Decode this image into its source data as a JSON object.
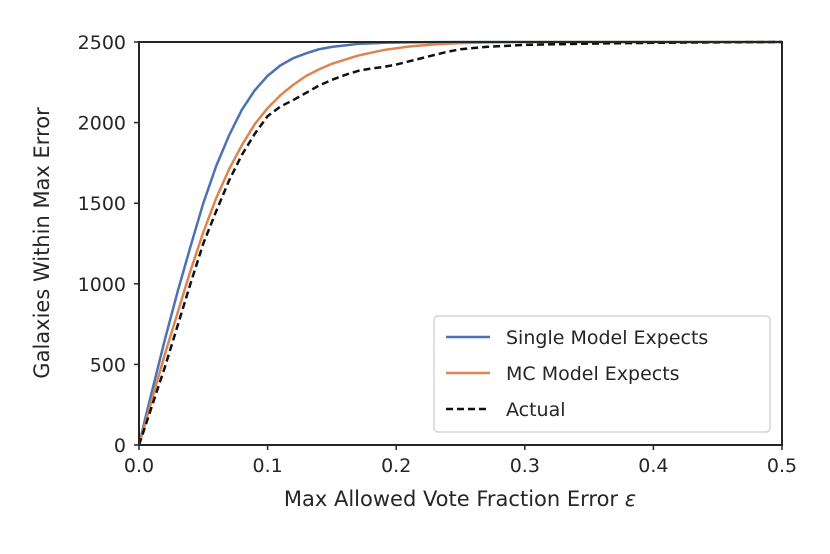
{
  "chart_data": {
    "type": "line",
    "title": "",
    "xlabel": "Max Allowed Vote Fraction Error",
    "xlabel_symbol": "ε",
    "ylabel": "Galaxies Within Max Error",
    "xlim": [
      0.0,
      0.5
    ],
    "ylim": [
      0,
      2500
    ],
    "xticks": [
      0.0,
      0.1,
      0.2,
      0.3,
      0.4,
      0.5
    ],
    "xtick_labels": [
      "0.0",
      "0.1",
      "0.2",
      "0.3",
      "0.4",
      "0.5"
    ],
    "yticks": [
      0,
      500,
      1000,
      1500,
      2000,
      2500
    ],
    "ytick_labels": [
      "0",
      "500",
      "1000",
      "1500",
      "2000",
      "2500"
    ],
    "grid": false,
    "legend_position": "bottom-right",
    "series": [
      {
        "name": "Single Model Expects",
        "color": "#4c72b0",
        "style": "solid",
        "x": [
          0.0,
          0.005,
          0.01,
          0.02,
          0.03,
          0.04,
          0.05,
          0.06,
          0.07,
          0.08,
          0.09,
          0.1,
          0.11,
          0.12,
          0.13,
          0.14,
          0.15,
          0.17,
          0.19,
          0.21,
          0.23,
          0.25,
          0.3,
          0.4,
          0.5
        ],
        "y": [
          0,
          170,
          330,
          650,
          950,
          1230,
          1500,
          1730,
          1920,
          2080,
          2200,
          2290,
          2355,
          2400,
          2430,
          2455,
          2470,
          2488,
          2495,
          2498,
          2499,
          2500,
          2500,
          2500,
          2500
        ]
      },
      {
        "name": "MC Model Expects",
        "color": "#dd8452",
        "style": "solid",
        "x": [
          0.0,
          0.005,
          0.01,
          0.02,
          0.03,
          0.04,
          0.05,
          0.06,
          0.07,
          0.08,
          0.09,
          0.1,
          0.11,
          0.12,
          0.13,
          0.14,
          0.15,
          0.17,
          0.19,
          0.21,
          0.23,
          0.25,
          0.27,
          0.3,
          0.4,
          0.5
        ],
        "y": [
          0,
          140,
          280,
          560,
          820,
          1080,
          1320,
          1530,
          1710,
          1860,
          1990,
          2090,
          2170,
          2235,
          2290,
          2330,
          2365,
          2415,
          2450,
          2472,
          2485,
          2493,
          2497,
          2500,
          2500,
          2500
        ]
      },
      {
        "name": "Actual",
        "color": "#111111",
        "style": "dashed",
        "x": [
          0.0,
          0.005,
          0.01,
          0.02,
          0.03,
          0.04,
          0.05,
          0.06,
          0.07,
          0.08,
          0.09,
          0.1,
          0.11,
          0.12,
          0.13,
          0.14,
          0.15,
          0.16,
          0.17,
          0.18,
          0.19,
          0.2,
          0.21,
          0.22,
          0.23,
          0.24,
          0.25,
          0.27,
          0.3,
          0.35,
          0.4,
          0.45,
          0.5
        ],
        "y": [
          0,
          120,
          240,
          480,
          740,
          1000,
          1250,
          1450,
          1640,
          1800,
          1930,
          2040,
          2100,
          2140,
          2185,
          2230,
          2265,
          2295,
          2320,
          2335,
          2345,
          2360,
          2380,
          2400,
          2420,
          2440,
          2455,
          2470,
          2482,
          2490,
          2495,
          2498,
          2500
        ]
      }
    ]
  }
}
